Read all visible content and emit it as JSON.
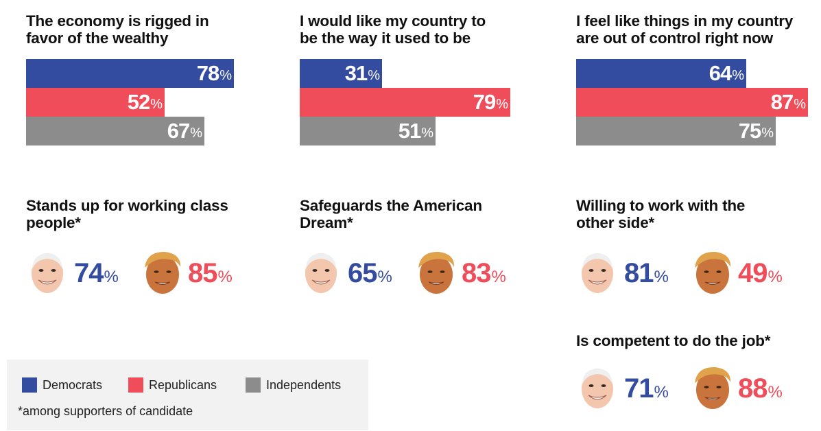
{
  "colors": {
    "democrats": "#344c9f",
    "republicans": "#ef4d5a",
    "independents": "#8c8c8c",
    "skin": "#f2c7ad",
    "tan": "#c8743c",
    "hair_white": "#efefef",
    "hair_blond": "#e0a24a"
  },
  "chart_data": [
    {
      "type": "bar",
      "title": "The economy is rigged in\nfavor of the wealthy",
      "categories": [
        "Democrats",
        "Republicans",
        "Independents"
      ],
      "values": [
        78,
        52,
        67
      ],
      "unit": "%"
    },
    {
      "type": "bar",
      "title": "I would like my country to\nbe the way it used to be",
      "categories": [
        "Democrats",
        "Republicans",
        "Independents"
      ],
      "values": [
        31,
        79,
        51
      ],
      "unit": "%"
    },
    {
      "type": "bar",
      "title": "I feel like things in my country\nare out of control right now",
      "categories": [
        "Democrats",
        "Republicans",
        "Independents"
      ],
      "values": [
        64,
        87,
        75
      ],
      "unit": "%"
    },
    {
      "type": "table",
      "title": "Stands up for working class\npeople*",
      "values": [
        74,
        85
      ],
      "unit": "%"
    },
    {
      "type": "table",
      "title": "Safeguards the American\nDream*",
      "values": [
        65,
        83
      ],
      "unit": "%"
    },
    {
      "type": "table",
      "title": "Willing to work with the\nother side*",
      "values": [
        81,
        49
      ],
      "unit": "%"
    },
    {
      "type": "table",
      "title": "Is competent to do the job*",
      "values": [
        71,
        88
      ],
      "unit": "%"
    }
  ],
  "legend": {
    "items": [
      {
        "label": "Democrats",
        "color_key": "democrats"
      },
      {
        "label": "Republicans",
        "color_key": "republicans"
      },
      {
        "label": "Independents",
        "color_key": "independents"
      }
    ],
    "note": "*among supporters of candidate"
  }
}
